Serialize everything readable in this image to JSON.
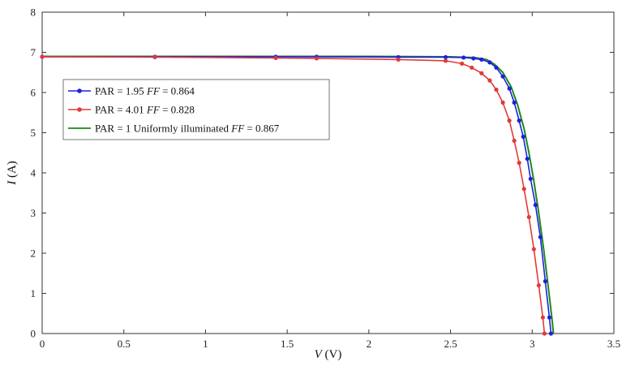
{
  "chart_data": {
    "type": "line",
    "xlabel": {
      "var": "V",
      "unit": " (V)"
    },
    "ylabel": {
      "var": "I",
      "unit": " (A)"
    },
    "xlim": [
      0,
      3.5
    ],
    "ylim": [
      0,
      8
    ],
    "x_ticks": [
      "0",
      "0.5",
      "1",
      "1.5",
      "2",
      "2.5",
      "3",
      "3.5"
    ],
    "y_ticks": [
      "0",
      "1",
      "2",
      "3",
      "4",
      "5",
      "6",
      "7",
      "8"
    ],
    "grid": false,
    "legend_position": "upper-left",
    "series": [
      {
        "label_prefix": "PAR = 1.95 ",
        "ff_symbol": "FF",
        "ff_value": " = 0.864",
        "color": "#1f1fe0",
        "marker": "dot",
        "points": [
          [
            0,
            6.89
          ],
          [
            0.69,
            6.89
          ],
          [
            1.43,
            6.89
          ],
          [
            1.68,
            6.89
          ],
          [
            2.18,
            6.88
          ],
          [
            2.47,
            6.88
          ],
          [
            2.58,
            6.87
          ],
          [
            2.64,
            6.85
          ],
          [
            2.69,
            6.82
          ],
          [
            2.74,
            6.75
          ],
          [
            2.78,
            6.62
          ],
          [
            2.82,
            6.4
          ],
          [
            2.86,
            6.1
          ],
          [
            2.89,
            5.75
          ],
          [
            2.92,
            5.3
          ],
          [
            2.945,
            4.9
          ],
          [
            2.97,
            4.35
          ],
          [
            2.99,
            3.85
          ],
          [
            3.02,
            3.2
          ],
          [
            3.05,
            2.4
          ],
          [
            3.08,
            1.3
          ],
          [
            3.105,
            0.4
          ],
          [
            3.115,
            0
          ]
        ]
      },
      {
        "label_prefix": "PAR = 4.01 ",
        "ff_symbol": "FF",
        "ff_value": " = 0.828",
        "color": "#e03a3a",
        "marker": "dot",
        "points": [
          [
            0,
            6.89
          ],
          [
            0.69,
            6.88
          ],
          [
            1.43,
            6.86
          ],
          [
            1.68,
            6.85
          ],
          [
            2.18,
            6.82
          ],
          [
            2.47,
            6.79
          ],
          [
            2.57,
            6.72
          ],
          [
            2.63,
            6.62
          ],
          [
            2.69,
            6.48
          ],
          [
            2.74,
            6.3
          ],
          [
            2.78,
            6.07
          ],
          [
            2.82,
            5.75
          ],
          [
            2.86,
            5.3
          ],
          [
            2.89,
            4.8
          ],
          [
            2.92,
            4.25
          ],
          [
            2.95,
            3.6
          ],
          [
            2.98,
            2.9
          ],
          [
            3.01,
            2.1
          ],
          [
            3.04,
            1.2
          ],
          [
            3.065,
            0.4
          ],
          [
            3.075,
            0
          ]
        ]
      },
      {
        "label_prefix": "PAR = 1 Uniformly  illuminated ",
        "ff_symbol": "FF",
        "ff_value": " = 0.867",
        "color": "#1a8a1a",
        "marker": "none",
        "points": [
          [
            0,
            6.9
          ],
          [
            1.0,
            6.9
          ],
          [
            2.0,
            6.9
          ],
          [
            2.5,
            6.89
          ],
          [
            2.65,
            6.87
          ],
          [
            2.72,
            6.82
          ],
          [
            2.77,
            6.7
          ],
          [
            2.82,
            6.5
          ],
          [
            2.87,
            6.15
          ],
          [
            2.91,
            5.7
          ],
          [
            2.95,
            5.1
          ],
          [
            2.98,
            4.5
          ],
          [
            3.01,
            3.8
          ],
          [
            3.04,
            3.0
          ],
          [
            3.07,
            2.1
          ],
          [
            3.1,
            1.1
          ],
          [
            3.12,
            0.4
          ],
          [
            3.13,
            0
          ]
        ]
      }
    ]
  }
}
